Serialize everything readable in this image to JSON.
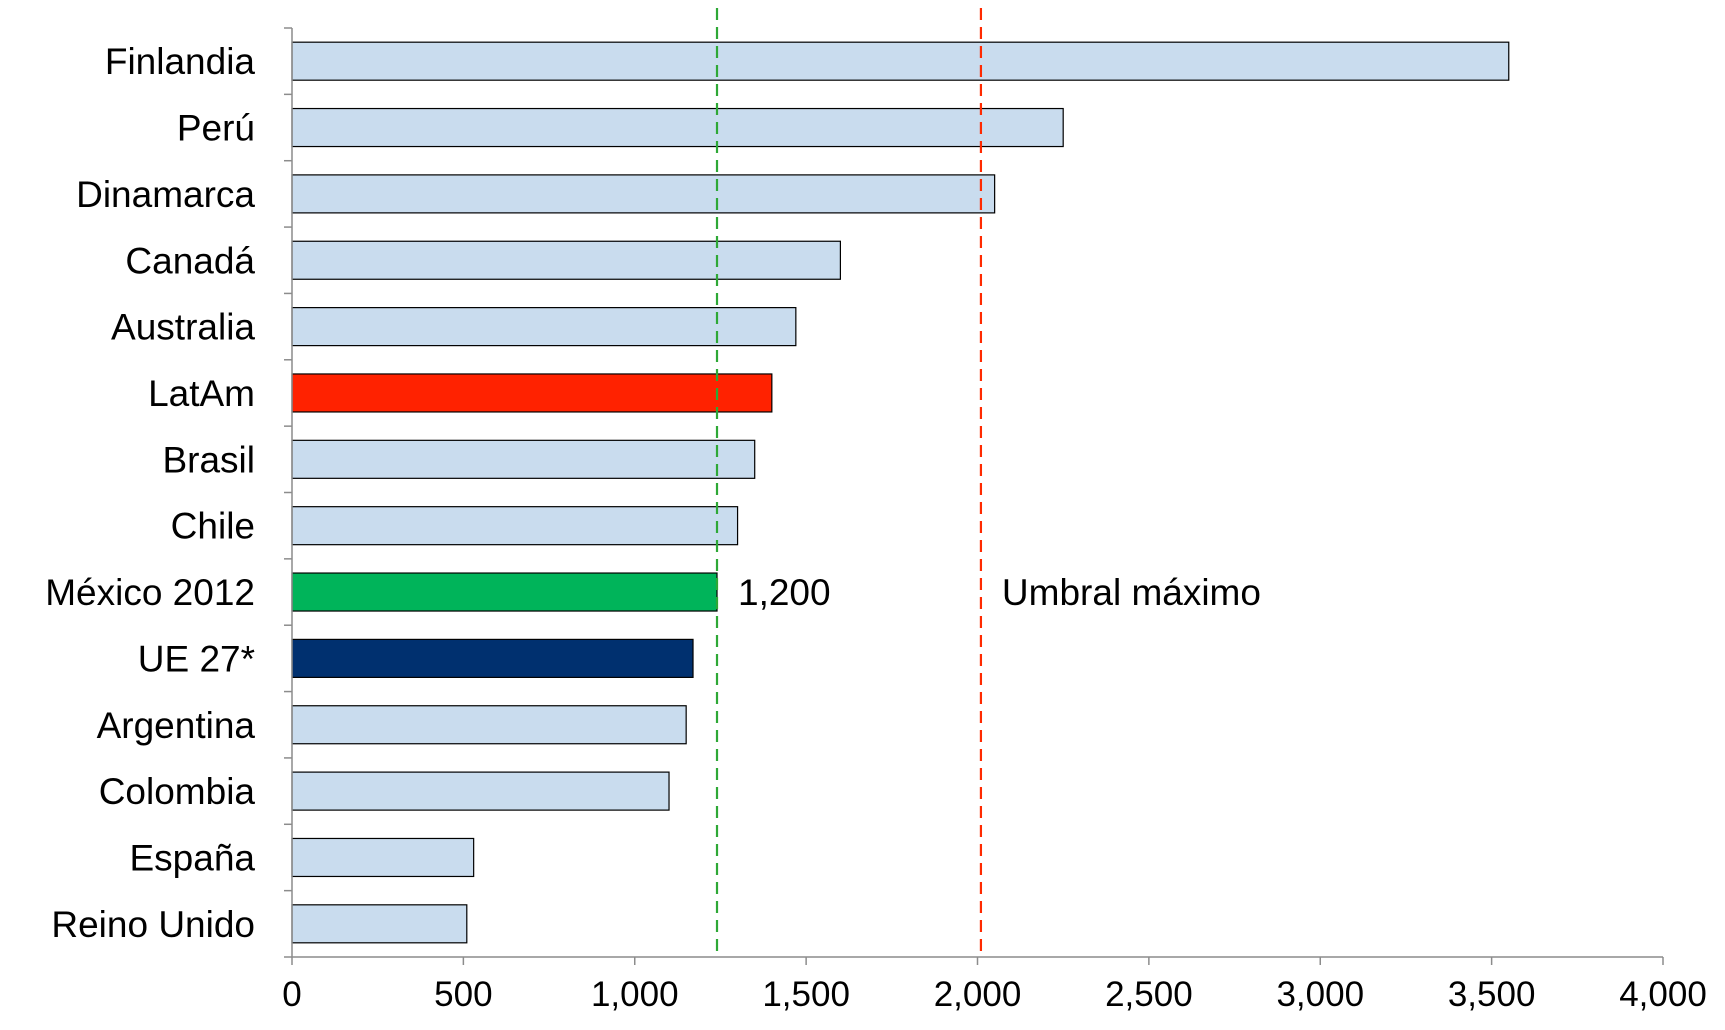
{
  "chart_data": {
    "type": "bar",
    "orientation": "horizontal",
    "title": "",
    "xlabel": "",
    "ylabel": "",
    "categories": [
      "Finlandia",
      "Perú",
      "Dinamarca",
      "Canadá",
      "Australia",
      "LatAm",
      "Brasil",
      "Chile",
      "México 2012",
      "UE 27*",
      "Argentina",
      "Colombia",
      "España",
      "Reino Unido"
    ],
    "values": [
      3550,
      2250,
      2050,
      1600,
      1470,
      1400,
      1350,
      1300,
      1240,
      1170,
      1150,
      1100,
      530,
      510
    ],
    "bar_colors": [
      "#c9dcee",
      "#c9dcee",
      "#c9dcee",
      "#c9dcee",
      "#c9dcee",
      "#ff2200",
      "#c9dcee",
      "#c9dcee",
      "#00b45a",
      "#00306f",
      "#c9dcee",
      "#c9dcee",
      "#c9dcee",
      "#c9dcee"
    ],
    "xlim": [
      0,
      4000
    ],
    "xticks": [
      0,
      500,
      1000,
      1500,
      2000,
      2500,
      3000,
      3500,
      4000
    ],
    "xtick_labels": [
      "0",
      "500",
      "1,000",
      "1,500",
      "2,000",
      "2,500",
      "3,000",
      "3,500",
      "4,000"
    ],
    "grid": false,
    "legend": "none",
    "reference_lines": [
      {
        "value": 1240,
        "label": "1,200",
        "color": "#2ea836",
        "style": "dashed"
      },
      {
        "value": 2010,
        "label": "Umbral máximo",
        "color": "#ff2a00",
        "style": "dashed"
      }
    ]
  }
}
